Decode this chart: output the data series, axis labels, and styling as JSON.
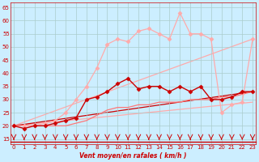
{
  "xlabel": "Vent moyen/en rafales ( km/h )",
  "bg_color": "#cceeff",
  "grid_color": "#aacccc",
  "x_ticks": [
    0,
    1,
    2,
    3,
    4,
    5,
    6,
    7,
    8,
    9,
    10,
    11,
    12,
    13,
    14,
    15,
    16,
    17,
    18,
    19,
    20,
    21,
    22,
    23
  ],
  "y_ticks": [
    15,
    20,
    25,
    30,
    35,
    40,
    45,
    50,
    55,
    60,
    65
  ],
  "ylim": [
    13,
    67
  ],
  "xlim": [
    -0.3,
    23.3
  ],
  "lines": [
    {
      "x": [
        0,
        23
      ],
      "y": [
        20,
        29
      ],
      "color": "#ffaaaa",
      "lw": 0.9,
      "marker": null,
      "zorder": 1,
      "ls": "-"
    },
    {
      "x": [
        0,
        23
      ],
      "y": [
        20,
        53
      ],
      "color": "#ffaaaa",
      "lw": 0.9,
      "marker": null,
      "zorder": 1,
      "ls": "-"
    },
    {
      "x": [
        0,
        23
      ],
      "y": [
        20,
        33
      ],
      "color": "#cc0000",
      "lw": 0.9,
      "marker": null,
      "zorder": 1,
      "ls": "-"
    },
    {
      "x": [
        0,
        1,
        2,
        3,
        4,
        5,
        6,
        7,
        8,
        9,
        10,
        11,
        12,
        13,
        14,
        15,
        16,
        17,
        18,
        19,
        20,
        21,
        22,
        23
      ],
      "y": [
        20,
        20,
        20,
        21,
        22,
        25,
        30,
        35,
        42,
        51,
        53,
        52,
        56,
        57,
        55,
        53,
        63,
        55,
        55,
        53,
        25,
        28,
        29,
        53
      ],
      "color": "#ffaaaa",
      "lw": 0.9,
      "marker": "D",
      "markersize": 2.5,
      "zorder": 3,
      "ls": "-"
    },
    {
      "x": [
        0,
        1,
        2,
        3,
        4,
        5,
        6,
        7,
        8,
        9,
        10,
        11,
        12,
        13,
        14,
        15,
        16,
        17,
        18,
        19,
        20,
        21,
        22,
        23
      ],
      "y": [
        20,
        19,
        20,
        20,
        21,
        22,
        23,
        30,
        31,
        33,
        36,
        38,
        34,
        35,
        35,
        33,
        35,
        33,
        35,
        30,
        30,
        31,
        33,
        33
      ],
      "color": "#cc0000",
      "lw": 1.0,
      "marker": "D",
      "markersize": 2.5,
      "zorder": 4,
      "ls": "-"
    },
    {
      "x": [
        0,
        1,
        2,
        3,
        4,
        5,
        6,
        7,
        8,
        9,
        10,
        11,
        12,
        13,
        14,
        15,
        16,
        17,
        18,
        19,
        20,
        21,
        22,
        23
      ],
      "y": [
        20,
        20,
        20,
        20,
        20,
        20,
        21,
        22,
        24,
        26,
        27,
        27,
        28,
        28,
        29,
        29,
        29,
        30,
        30,
        30,
        31,
        31,
        32,
        33
      ],
      "color": "#ff7777",
      "lw": 0.9,
      "marker": null,
      "zorder": 2,
      "ls": "-"
    }
  ],
  "arrow_color": "#cc0000",
  "xlabel_color": "#cc0000",
  "tick_color": "#cc0000",
  "spine_color": "#cc0000",
  "hline_y": 13.8,
  "hline_color": "#cc0000"
}
